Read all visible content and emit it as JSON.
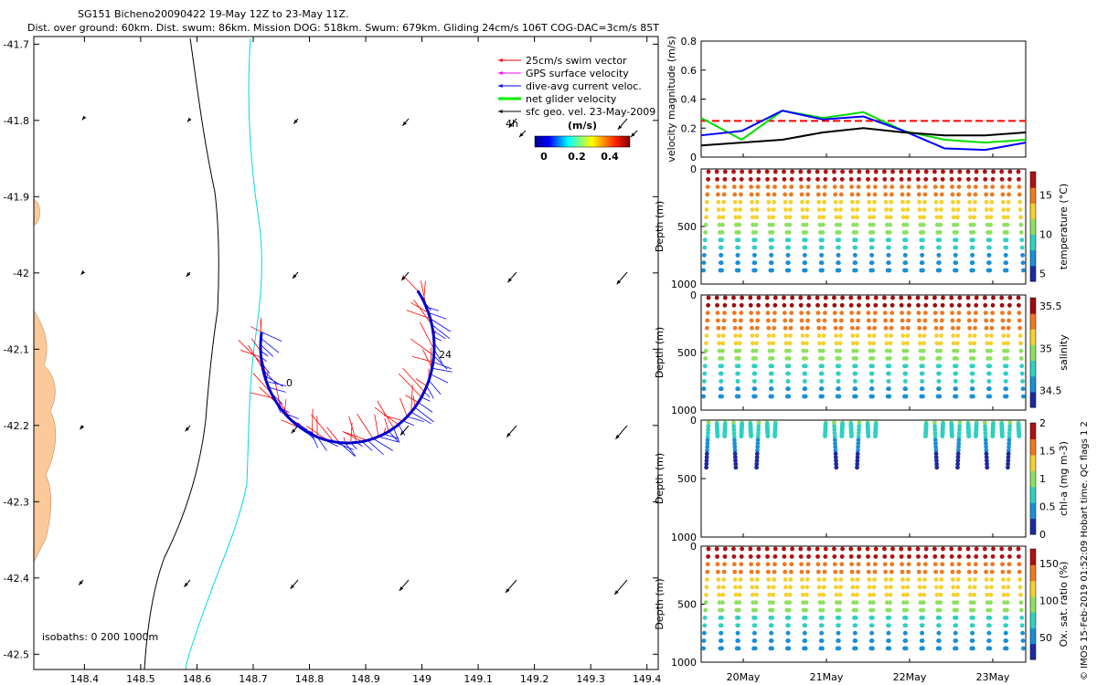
{
  "header": {
    "line1": "SG151 Bicheno20090422 19-May 12Z to 23-May 11Z.",
    "line2": "Dist. over ground: 60km. Dist. swum: 86km. Mission DOG: 518km. Swum: 679km. Gliding 24cm/s 106T COG-DAC=3cm/s 85T"
  },
  "credit": "© IMOS 15-Feb-2019 01:52:09 Hobart time. QC flags 1  2",
  "map": {
    "x_ticks": [
      "148.4",
      "148.5",
      "148.6",
      "148.7",
      "148.8",
      "148.9",
      "149",
      "149.1",
      "149.2",
      "149.3",
      "149.4"
    ],
    "y_ticks": [
      "-41.7",
      "-41.8",
      "-41.9",
      "-42",
      "-42.1",
      "-42.2",
      "-42.3",
      "-42.4",
      "-42.5"
    ],
    "xlim": [
      148.31,
      149.42
    ],
    "ylim": [
      -42.52,
      -41.69
    ],
    "isobath_label": "isobaths: 0   200   1000m",
    "track_label_start": "0",
    "track_label_end": "24",
    "legend": [
      {
        "label": "25cm/s swim vector",
        "color": "#ff0000"
      },
      {
        "label": "GPS surface velocity",
        "color": "#ff00ff"
      },
      {
        "label": "dive-avg current veloc.",
        "color": "#0000ff"
      },
      {
        "label": "net glider velocity",
        "color": "#00ee00"
      },
      {
        "label": "sfc geo. vel. 23-May-2009",
        "color": "#000000"
      }
    ],
    "colorbar_title": "(m/s)",
    "colorbar_ticks": [
      "0",
      "0.2",
      "0.4"
    ],
    "small_vector_label": "4h",
    "land_color": "#fcc99a"
  },
  "chart_data": [
    {
      "type": "line",
      "title": "",
      "ylabel": "velocity magnitude (m/s)",
      "ylim": [
        0,
        0.8
      ],
      "y_ticks": [
        "0",
        "0.2",
        "0.4",
        "0.6",
        "0.8"
      ],
      "series": [
        {
          "color": "#ff0000",
          "values": [
            0.25,
            0.25,
            0.25,
            0.25,
            0.25,
            0.25,
            0.25,
            0.25,
            0.25
          ]
        },
        {
          "color": "#00dd00",
          "values": [
            0.27,
            0.12,
            0.32,
            0.27,
            0.31,
            0.18,
            0.12,
            0.1,
            0.12
          ]
        },
        {
          "color": "#0000ff",
          "values": [
            0.15,
            0.18,
            0.32,
            0.26,
            0.28,
            0.18,
            0.06,
            0.05,
            0.1
          ]
        },
        {
          "color": "#000000",
          "values": [
            0.08,
            0.1,
            0.12,
            0.17,
            0.2,
            0.17,
            0.15,
            0.15,
            0.17
          ]
        }
      ]
    },
    {
      "type": "scatter",
      "ylabel": "Depth (m)",
      "y_ticks": [
        "0",
        "500",
        "1000"
      ],
      "clabel": "temperature (°C)",
      "c_ticks": [
        "5",
        "10",
        "15"
      ],
      "c_values": [
        4,
        18
      ]
    },
    {
      "type": "scatter",
      "ylabel": "Depth (m)",
      "y_ticks": [
        "0",
        "500",
        "1000"
      ],
      "clabel": "salinity",
      "c_ticks": [
        "34.5",
        "35",
        "35.5"
      ],
      "c_values": [
        34.3,
        35.6
      ]
    },
    {
      "type": "scatter",
      "ylabel": "Depth (m)",
      "y_ticks": [
        "0",
        "500",
        "1000"
      ],
      "clabel": "chl-a (mg m-3)",
      "c_ticks": [
        "0",
        "0.5",
        "1",
        "1.5",
        "2"
      ],
      "c_values": [
        0,
        2
      ]
    },
    {
      "type": "scatter",
      "ylabel": "Depth (m)",
      "y_ticks": [
        "0",
        "500",
        "1000"
      ],
      "clabel": "Ox. sat. ratio (%)",
      "c_ticks": [
        "50",
        "100",
        "150"
      ],
      "c_values": [
        20,
        170
      ],
      "x_ticks": [
        "20May",
        "21May",
        "22May",
        "23May"
      ]
    }
  ]
}
